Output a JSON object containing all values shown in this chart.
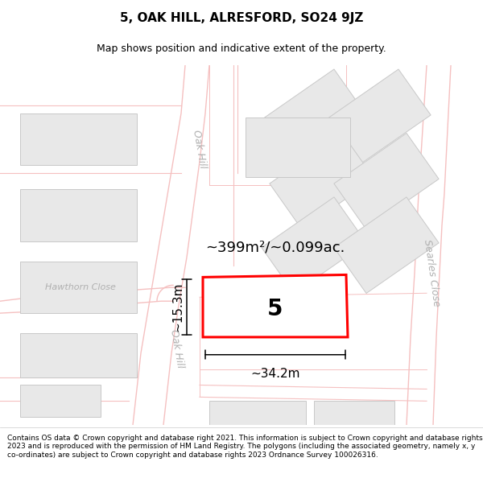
{
  "title_line1": "5, OAK HILL, ALRESFORD, SO24 9JZ",
  "title_line2": "Map shows position and indicative extent of the property.",
  "footer_text": "Contains OS data © Crown copyright and database right 2021. This information is subject to Crown copyright and database rights 2023 and is reproduced with the permission of HM Land Registry. The polygons (including the associated geometry, namely x, y co-ordinates) are subject to Crown copyright and database rights 2023 Ordnance Survey 100026316.",
  "map_bg": "#ffffff",
  "road_line_color": "#f5c0c0",
  "building_fill": "#e8e8e8",
  "building_outline": "#c8c8c8",
  "highlighted_outline": "#ff0000",
  "highlight_lw": 2.2,
  "area_text": "~399m²/~0.099ac.",
  "number_text": "5",
  "dim_width": "~34.2m",
  "dim_height": "~15.3m",
  "street_color": "#b0b0b0",
  "street_label_oak_hill": "Oak Hill",
  "street_label_hawthorn": "Hawthorn Close",
  "street_label_searles": "Searles Close",
  "street_label_oak_hill2": "Oak Hill",
  "title_fontsize": 11,
  "subtitle_fontsize": 9,
  "footer_fontsize": 6.5
}
